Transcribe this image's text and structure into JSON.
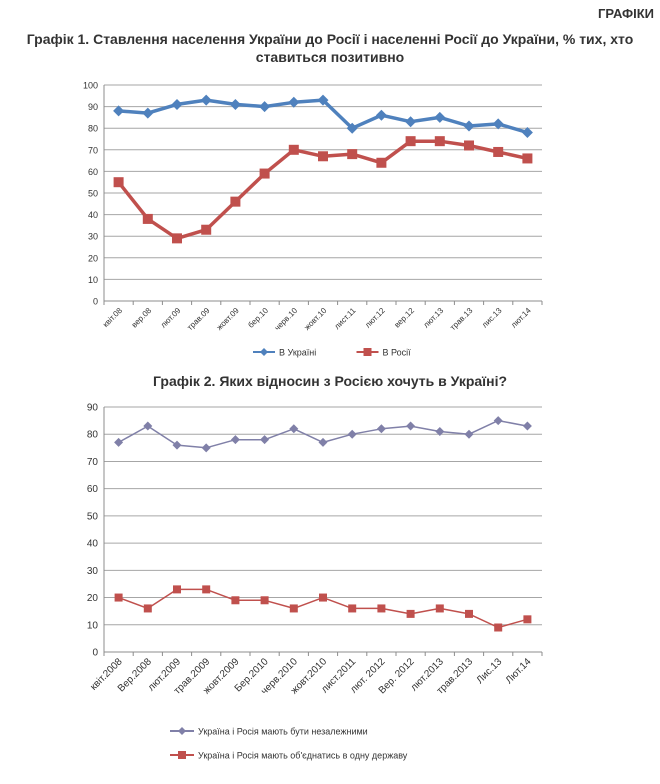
{
  "header": {
    "section": "ГРАФІКИ"
  },
  "chart_data": [
    {
      "type": "line",
      "title": "Графік 1. Ставлення населення України до Росії і населенні Росії до України, % тих, хто ставиться позитивно",
      "categories": [
        "квіт.08",
        "вер.08",
        "лют.09",
        "трав.09",
        "жовт.09",
        "бер.10",
        "черв.10",
        "жовт.10",
        "лист.11",
        "лют.12",
        "вер.12",
        "лют.13",
        "трав.13",
        "лис.13",
        "лют.14"
      ],
      "series": [
        {
          "name": "В Україні",
          "color": "#4f81bd",
          "marker": "diamond",
          "values": [
            88,
            87,
            91,
            93,
            91,
            90,
            92,
            93,
            80,
            86,
            83,
            85,
            81,
            82,
            78
          ]
        },
        {
          "name": "В Росії",
          "color": "#c0504d",
          "marker": "square",
          "values": [
            55,
            38,
            29,
            33,
            46,
            59,
            70,
            67,
            68,
            64,
            74,
            74,
            72,
            69,
            66
          ]
        }
      ],
      "ylim": [
        0,
        100
      ],
      "yticks": [
        0,
        10,
        20,
        30,
        40,
        50,
        60,
        70,
        80,
        90,
        100
      ],
      "grid": true,
      "legend": "bottom"
    },
    {
      "type": "line",
      "title": "Графік 2. Яких відносин з Росією хочуть в Україні?",
      "categories": [
        "квіт.2008",
        "Вер.2008",
        "лют.2009",
        "трав.2009",
        "жовт.2009",
        "Бер.2010",
        "черв.2010",
        "жовт.2010",
        "лист.2011",
        "лют. 2012",
        "Вер. 2012",
        "лют.2013",
        "трав.2013",
        "Лис.13",
        "Лют.14"
      ],
      "series": [
        {
          "name": "Україна і Росія мають бути незалежними",
          "color": "#8080a8",
          "marker": "diamond",
          "values": [
            77,
            83,
            76,
            75,
            78,
            78,
            82,
            77,
            80,
            82,
            83,
            81,
            80,
            85,
            83
          ]
        },
        {
          "name": "Україна і Росія мають об'єднатись в одну державу",
          "color": "#c0504d",
          "marker": "square",
          "values": [
            20,
            16,
            23,
            23,
            19,
            19,
            16,
            20,
            16,
            16,
            14,
            16,
            14,
            9,
            12
          ]
        }
      ],
      "ylim": [
        0,
        90
      ],
      "yticks": [
        0,
        10,
        20,
        30,
        40,
        50,
        60,
        70,
        80,
        90
      ],
      "grid": true,
      "legend": "bottom"
    }
  ]
}
